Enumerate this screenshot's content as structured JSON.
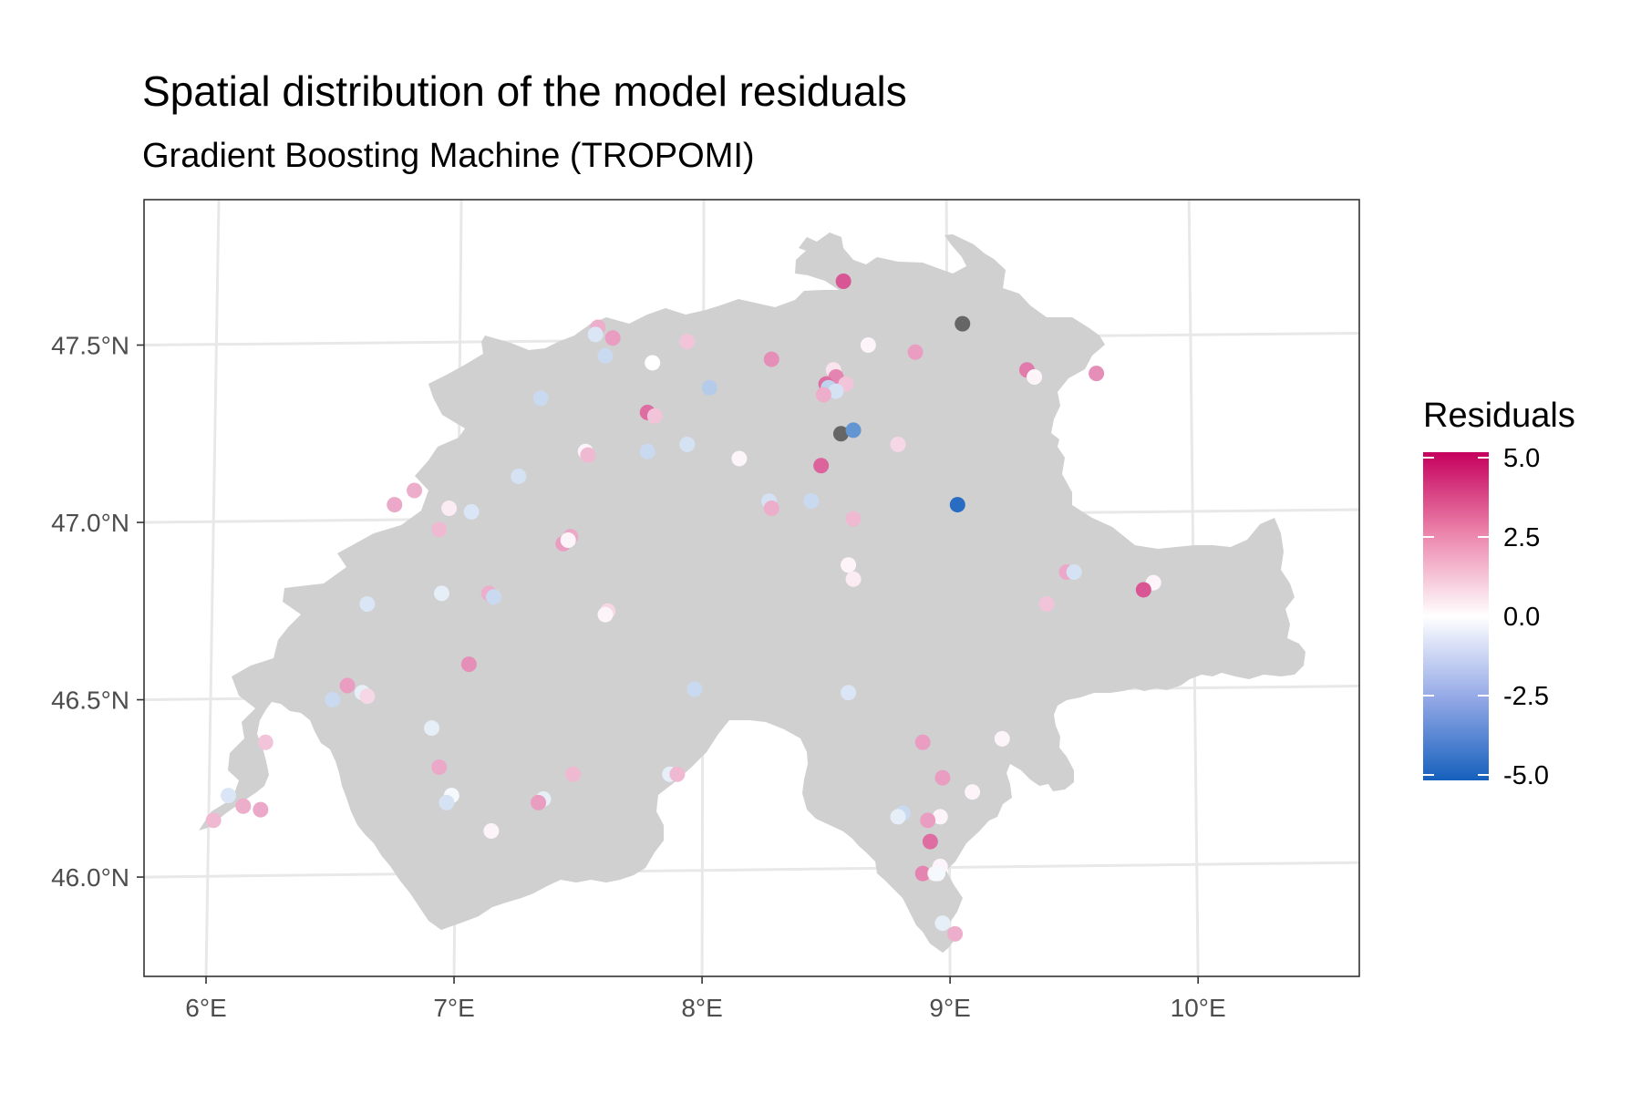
{
  "title": "Spatial distribution of the model residuals",
  "subtitle": "Gradient Boosting Machine (TROPOMI)",
  "chart_data": {
    "type": "scatter",
    "xlim": [
      5.75,
      10.65
    ],
    "ylim": [
      45.72,
      47.91
    ],
    "x_ticks": [
      {
        "value": 6,
        "label": "6°E"
      },
      {
        "value": 7,
        "label": "7°E"
      },
      {
        "value": 8,
        "label": "8°E"
      },
      {
        "value": 9,
        "label": "9°E"
      },
      {
        "value": 10,
        "label": "10°E"
      }
    ],
    "y_ticks": [
      {
        "value": 46.0,
        "label": "46.0°N"
      },
      {
        "value": 46.5,
        "label": "46.5°N"
      },
      {
        "value": 47.0,
        "label": "47.0°N"
      },
      {
        "value": 47.5,
        "label": "47.5°N"
      }
    ],
    "legend": {
      "title": "Residuals",
      "position": "right",
      "labels": [
        "5.0",
        "2.5",
        "0.0",
        "-2.5",
        "-5.0"
      ],
      "values": [
        5,
        2.5,
        0,
        -2.5,
        -5
      ],
      "range": [
        -5,
        5
      ],
      "colors": {
        "low": "#1560bd",
        "mid": "#ffffff",
        "high": "#c5005d"
      },
      "na_color": "#666666"
    },
    "background_color": "#ffffff",
    "land_color": "#d0d0d0",
    "graticule_color": "#e8e8e8",
    "points": [
      {
        "lon": 8.57,
        "lat": 47.68,
        "residual": 3.0
      },
      {
        "lon": 9.05,
        "lat": 47.56,
        "residual": null
      },
      {
        "lon": 7.58,
        "lat": 47.55,
        "residual": 1.2
      },
      {
        "lon": 7.57,
        "lat": 47.53,
        "residual": -0.5
      },
      {
        "lon": 7.64,
        "lat": 47.52,
        "residual": 1.5
      },
      {
        "lon": 7.94,
        "lat": 47.51,
        "residual": 0.8
      },
      {
        "lon": 8.67,
        "lat": 47.5,
        "residual": 0.1
      },
      {
        "lon": 8.86,
        "lat": 47.48,
        "residual": 1.5
      },
      {
        "lon": 7.61,
        "lat": 47.47,
        "residual": -0.8
      },
      {
        "lon": 8.28,
        "lat": 47.46,
        "residual": 1.8
      },
      {
        "lon": 7.8,
        "lat": 47.45,
        "residual": 0.0
      },
      {
        "lon": 8.53,
        "lat": 47.43,
        "residual": 0.3
      },
      {
        "lon": 9.31,
        "lat": 47.43,
        "residual": 2.2
      },
      {
        "lon": 8.54,
        "lat": 47.41,
        "residual": 2.0
      },
      {
        "lon": 9.59,
        "lat": 47.42,
        "residual": 1.8
      },
      {
        "lon": 9.34,
        "lat": 47.41,
        "residual": 0.1
      },
      {
        "lon": 8.5,
        "lat": 47.39,
        "residual": 2.5
      },
      {
        "lon": 8.58,
        "lat": 47.39,
        "residual": 0.8
      },
      {
        "lon": 8.03,
        "lat": 47.38,
        "residual": -1.2
      },
      {
        "lon": 8.51,
        "lat": 47.38,
        "residual": -1.0
      },
      {
        "lon": 8.54,
        "lat": 47.37,
        "residual": -0.6
      },
      {
        "lon": 8.49,
        "lat": 47.36,
        "residual": 1.2
      },
      {
        "lon": 7.35,
        "lat": 47.35,
        "residual": -0.8
      },
      {
        "lon": 7.78,
        "lat": 47.31,
        "residual": 2.5
      },
      {
        "lon": 7.81,
        "lat": 47.3,
        "residual": 0.8
      },
      {
        "lon": 8.56,
        "lat": 47.25,
        "residual": null
      },
      {
        "lon": 8.61,
        "lat": 47.26,
        "residual": -3.0
      },
      {
        "lon": 7.94,
        "lat": 47.22,
        "residual": -0.6
      },
      {
        "lon": 8.79,
        "lat": 47.22,
        "residual": 0.5
      },
      {
        "lon": 7.53,
        "lat": 47.2,
        "residual": 0.1
      },
      {
        "lon": 7.54,
        "lat": 47.19,
        "residual": 1.0
      },
      {
        "lon": 7.78,
        "lat": 47.2,
        "residual": -0.8
      },
      {
        "lon": 8.15,
        "lat": 47.18,
        "residual": 0.1
      },
      {
        "lon": 8.48,
        "lat": 47.16,
        "residual": 2.7
      },
      {
        "lon": 7.26,
        "lat": 47.13,
        "residual": -0.6
      },
      {
        "lon": 6.84,
        "lat": 47.09,
        "residual": 1.2
      },
      {
        "lon": 8.27,
        "lat": 47.06,
        "residual": -0.6
      },
      {
        "lon": 8.44,
        "lat": 47.06,
        "residual": -0.8
      },
      {
        "lon": 6.76,
        "lat": 47.05,
        "residual": 1.3
      },
      {
        "lon": 9.03,
        "lat": 47.05,
        "residual": -4.5
      },
      {
        "lon": 8.28,
        "lat": 47.04,
        "residual": 1.2
      },
      {
        "lon": 6.98,
        "lat": 47.04,
        "residual": 0.2
      },
      {
        "lon": 7.07,
        "lat": 47.03,
        "residual": -0.5
      },
      {
        "lon": 8.61,
        "lat": 47.01,
        "residual": 1.0
      },
      {
        "lon": 6.94,
        "lat": 46.98,
        "residual": 1.0
      },
      {
        "lon": 7.47,
        "lat": 46.96,
        "residual": 1.3
      },
      {
        "lon": 7.44,
        "lat": 46.94,
        "residual": 1.5
      },
      {
        "lon": 7.46,
        "lat": 46.95,
        "residual": 0.1
      },
      {
        "lon": 8.59,
        "lat": 46.88,
        "residual": 0.1
      },
      {
        "lon": 9.47,
        "lat": 46.86,
        "residual": 1.3
      },
      {
        "lon": 9.5,
        "lat": 46.86,
        "residual": -0.6
      },
      {
        "lon": 8.61,
        "lat": 46.84,
        "residual": 0.2
      },
      {
        "lon": 9.82,
        "lat": 46.83,
        "residual": 0.1
      },
      {
        "lon": 9.78,
        "lat": 46.81,
        "residual": 3.0
      },
      {
        "lon": 6.95,
        "lat": 46.8,
        "residual": -0.3
      },
      {
        "lon": 7.14,
        "lat": 46.8,
        "residual": 1.2
      },
      {
        "lon": 7.16,
        "lat": 46.79,
        "residual": -0.8
      },
      {
        "lon": 6.65,
        "lat": 46.77,
        "residual": -0.5
      },
      {
        "lon": 9.39,
        "lat": 46.77,
        "residual": 0.8
      },
      {
        "lon": 7.62,
        "lat": 46.75,
        "residual": 0.5
      },
      {
        "lon": 7.61,
        "lat": 46.74,
        "residual": 0.1
      },
      {
        "lon": 7.06,
        "lat": 46.6,
        "residual": 1.8
      },
      {
        "lon": 6.57,
        "lat": 46.54,
        "residual": 1.5
      },
      {
        "lon": 7.97,
        "lat": 46.53,
        "residual": -0.8
      },
      {
        "lon": 6.63,
        "lat": 46.52,
        "residual": -0.3
      },
      {
        "lon": 8.59,
        "lat": 46.52,
        "residual": -0.5
      },
      {
        "lon": 6.65,
        "lat": 46.51,
        "residual": 0.5
      },
      {
        "lon": 6.51,
        "lat": 46.5,
        "residual": -0.8
      },
      {
        "lon": 6.91,
        "lat": 46.42,
        "residual": -0.3
      },
      {
        "lon": 9.21,
        "lat": 46.39,
        "residual": 0.1
      },
      {
        "lon": 6.24,
        "lat": 46.38,
        "residual": 0.8
      },
      {
        "lon": 8.89,
        "lat": 46.38,
        "residual": 1.5
      },
      {
        "lon": 6.94,
        "lat": 46.31,
        "residual": 1.3
      },
      {
        "lon": 7.87,
        "lat": 46.29,
        "residual": -0.3
      },
      {
        "lon": 7.9,
        "lat": 46.29,
        "residual": 1.0
      },
      {
        "lon": 7.48,
        "lat": 46.29,
        "residual": 1.0
      },
      {
        "lon": 8.97,
        "lat": 46.28,
        "residual": 1.5
      },
      {
        "lon": 9.09,
        "lat": 46.24,
        "residual": 0.1
      },
      {
        "lon": 6.99,
        "lat": 46.23,
        "residual": -0.1
      },
      {
        "lon": 6.09,
        "lat": 46.23,
        "residual": -0.5
      },
      {
        "lon": 7.36,
        "lat": 46.22,
        "residual": -0.3
      },
      {
        "lon": 6.97,
        "lat": 46.21,
        "residual": -0.6
      },
      {
        "lon": 7.34,
        "lat": 46.21,
        "residual": 1.5
      },
      {
        "lon": 6.15,
        "lat": 46.2,
        "residual": 1.2
      },
      {
        "lon": 6.22,
        "lat": 46.19,
        "residual": 1.3
      },
      {
        "lon": 8.81,
        "lat": 46.18,
        "residual": -0.8
      },
      {
        "lon": 8.79,
        "lat": 46.17,
        "residual": -0.3
      },
      {
        "lon": 8.96,
        "lat": 46.17,
        "residual": 0.1
      },
      {
        "lon": 8.91,
        "lat": 46.16,
        "residual": 1.5
      },
      {
        "lon": 6.03,
        "lat": 46.16,
        "residual": 1.0
      },
      {
        "lon": 7.15,
        "lat": 46.13,
        "residual": 0.1
      },
      {
        "lon": 8.92,
        "lat": 46.1,
        "residual": 2.5
      },
      {
        "lon": 8.96,
        "lat": 46.03,
        "residual": 0.1
      },
      {
        "lon": 8.89,
        "lat": 46.01,
        "residual": 2.0
      },
      {
        "lon": 8.94,
        "lat": 46.01,
        "residual": 0.1
      },
      {
        "lon": 8.95,
        "lat": 46.01,
        "residual": -0.1
      },
      {
        "lon": 8.97,
        "lat": 45.87,
        "residual": -0.3
      },
      {
        "lon": 9.02,
        "lat": 45.84,
        "residual": 1.2
      }
    ]
  }
}
